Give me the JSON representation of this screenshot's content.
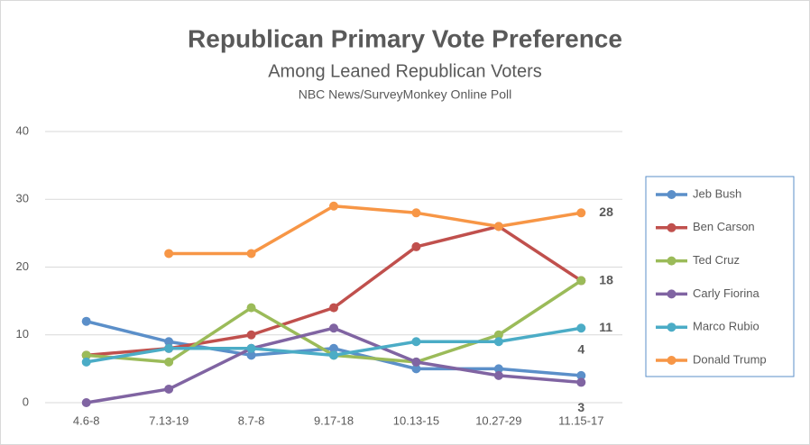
{
  "chart_data": {
    "type": "line",
    "title": "Republican Primary Vote Preference",
    "subtitle": "Among Leaned Republican Voters",
    "source": "NBC News/SurveyMonkey Online Poll",
    "categories": [
      "4.6-8",
      "7.13-19",
      "8.7-8",
      "9.17-18",
      "10.13-15",
      "10.27-29",
      "11.15-17"
    ],
    "ylim": [
      0,
      40
    ],
    "yticks": [
      0,
      10,
      20,
      30,
      40
    ],
    "grid": true,
    "legend": "right",
    "series": [
      {
        "name": "Jeb Bush",
        "color": "#5b8fc9",
        "values": [
          12,
          9,
          7,
          8,
          5,
          5,
          4
        ],
        "label_last": true
      },
      {
        "name": "Ben Carson",
        "color": "#c0504d",
        "values": [
          7,
          8,
          10,
          14,
          23,
          26,
          18
        ],
        "label_last": true
      },
      {
        "name": "Ted Cruz",
        "color": "#9bbb59",
        "values": [
          7,
          6,
          14,
          7,
          6,
          10,
          18
        ],
        "label_last": false
      },
      {
        "name": "Carly Fiorina",
        "color": "#8064a2",
        "values": [
          0,
          2,
          8,
          11,
          6,
          4,
          3
        ],
        "label_last": true
      },
      {
        "name": "Marco Rubio",
        "color": "#4bacc6",
        "values": [
          6,
          8,
          8,
          7,
          9,
          9,
          11
        ],
        "label_last": true
      },
      {
        "name": "Donald Trump",
        "color": "#f79646",
        "values": [
          null,
          22,
          22,
          29,
          28,
          26,
          28
        ],
        "label_last": true
      }
    ]
  }
}
